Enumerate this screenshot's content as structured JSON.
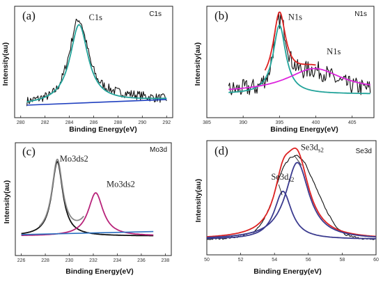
{
  "chart_data": [
    {
      "type": "line",
      "panel_label": "(a)",
      "tag": "C1s",
      "xlabel": "Binding Energy(eV)",
      "ylabel": "Intensity(au)",
      "xlim": [
        279.5,
        292.5
      ],
      "x_ticks": [
        280,
        282,
        284,
        286,
        288,
        290,
        292
      ],
      "annotations": [
        {
          "text": "C1s",
          "x": 285.6,
          "y": 0.97
        }
      ],
      "series": [
        {
          "role": "raw",
          "color": "#111111",
          "noise": 0.05,
          "x": [
            280.5,
            281.5,
            282.5,
            283.0,
            283.5,
            284.0,
            284.4,
            284.7,
            285.0,
            285.4,
            285.8,
            286.3,
            287.0,
            288.0,
            289.0,
            290.0,
            291.0,
            292.0
          ],
          "y": [
            0.1,
            0.13,
            0.17,
            0.24,
            0.38,
            0.62,
            0.88,
            0.99,
            0.94,
            0.72,
            0.5,
            0.34,
            0.25,
            0.2,
            0.18,
            0.16,
            0.14,
            0.13
          ]
        },
        {
          "role": "fit",
          "color": "#22a39a",
          "peaks": [
            {
              "center": 284.8,
              "width": 0.9,
              "height": 0.84
            }
          ],
          "baseline": [
            0.06,
            0.12
          ],
          "range": [
            280.5,
            292.0
          ]
        },
        {
          "role": "background",
          "color": "#1f3fbf",
          "x": [
            280.5,
            292.0
          ],
          "y": [
            0.06,
            0.12
          ]
        }
      ]
    },
    {
      "type": "line",
      "panel_label": "(b)",
      "tag": "N1s",
      "xlabel": "Binding Energy(eV)",
      "ylabel": "Intensity(au)",
      "xlim": [
        385,
        408
      ],
      "x_ticks": [
        385,
        390,
        395,
        400,
        405
      ],
      "annotations": [
        {
          "text": "N1s",
          "x": 396.2,
          "y": 0.97
        },
        {
          "text": "N1s",
          "x": 401.5,
          "y": 0.52
        }
      ],
      "series": [
        {
          "role": "raw",
          "color": "#111111",
          "noise": 0.12,
          "x": [
            388.0,
            390.0,
            392.0,
            393.5,
            394.2,
            394.8,
            395.2,
            395.8,
            396.5,
            397.5,
            398.5,
            399.5,
            400.5,
            401.5,
            402.5,
            403.5,
            404.5,
            405.5,
            406.5,
            407.5
          ],
          "y": [
            0.05,
            0.07,
            0.09,
            0.25,
            0.62,
            0.95,
            0.98,
            0.78,
            0.46,
            0.33,
            0.31,
            0.33,
            0.3,
            0.26,
            0.2,
            0.15,
            0.12,
            0.1,
            0.08,
            0.07
          ]
        },
        {
          "role": "fit",
          "color": "#22a39a",
          "peaks": [
            {
              "center": 395.0,
              "width": 1.05,
              "height": 0.9
            }
          ],
          "baseline": [
            0.0,
            0.0
          ],
          "range": [
            388.0,
            407.5
          ]
        },
        {
          "role": "fit",
          "color": "#dd22dd",
          "peaks": [
            {
              "center": 399.8,
              "width": 4.6,
              "height": 0.3
            }
          ],
          "baseline": [
            0.02,
            0.04
          ],
          "range": [
            388.0,
            407.5
          ]
        },
        {
          "role": "fit",
          "color": "#dd2222",
          "peaks": [
            {
              "center": 395.0,
              "width": 1.05,
              "height": 0.9
            },
            {
              "center": 399.8,
              "width": 4.6,
              "height": 0.3
            }
          ],
          "baseline": [
            0.02,
            0.04
          ],
          "range": [
            393.0,
            400.0
          ]
        }
      ]
    },
    {
      "type": "line",
      "panel_label": "(c)",
      "tag": "Mo3d",
      "xlabel": "Binding Energy(eV)",
      "ylabel": "Intensity(au)",
      "xlim": [
        225.5,
        238.5
      ],
      "x_ticks": [
        226,
        228,
        230,
        232,
        234,
        236,
        238
      ],
      "annotations": [
        {
          "text": "Mo3ds2",
          "x": 229.2,
          "y": 1.0
        },
        {
          "text": "Mo3ds2",
          "x": 233.1,
          "y": 0.66
        }
      ],
      "series": [
        {
          "role": "fit",
          "color": "#111111",
          "peaks": [
            {
              "center": 229.0,
              "width": 0.55,
              "height": 1.0
            }
          ],
          "baseline": [
            0.0,
            0.0
          ],
          "range": [
            226.0,
            237.0
          ]
        },
        {
          "role": "fit",
          "color": "#b8237a",
          "peaks": [
            {
              "center": 232.2,
              "width": 0.75,
              "height": 0.58
            }
          ],
          "baseline": [
            0.0,
            0.0
          ],
          "range": [
            226.0,
            237.0
          ]
        },
        {
          "role": "fit",
          "color": "#888888",
          "peaks": [
            {
              "center": 229.0,
              "width": 0.55,
              "height": 1.0
            },
            {
              "center": 232.2,
              "width": 0.75,
              "height": 0.58
            }
          ],
          "baseline": [
            0.0,
            0.0
          ],
          "range": [
            227.5,
            231.2
          ]
        },
        {
          "role": "background",
          "color": "#2a6fbf",
          "x": [
            226.0,
            237.0
          ],
          "y": [
            0.02,
            0.06
          ]
        }
      ]
    },
    {
      "type": "line",
      "panel_label": "(d)",
      "tag": "Se3d",
      "xlabel": "Binding Energy(eV)",
      "ylabel": "Intensity(au)",
      "xlim": [
        50,
        60
      ],
      "x_ticks": [
        50,
        52,
        54,
        56,
        58,
        60
      ],
      "annotations": [
        {
          "text": "Se3d",
          "sub": "s2",
          "x": 55.55,
          "y": 0.99
        },
        {
          "text": "Se3d",
          "sub": "s2",
          "x": 53.8,
          "y": 0.68
        }
      ],
      "series": [
        {
          "role": "raw",
          "color": "#111111",
          "noise": 0.008,
          "x": [
            50.0,
            51.0,
            52.0,
            52.8,
            53.3,
            53.8,
            54.2,
            54.6,
            55.0,
            55.4,
            55.8,
            56.3,
            57.0,
            57.6,
            58.2,
            59.0,
            60.0
          ],
          "y": [
            0.06,
            0.07,
            0.09,
            0.14,
            0.24,
            0.43,
            0.66,
            0.84,
            0.92,
            0.93,
            0.86,
            0.66,
            0.38,
            0.2,
            0.11,
            0.07,
            0.06
          ]
        },
        {
          "role": "fit",
          "color": "#dd2222",
          "peaks": [
            {
              "center": 54.5,
              "width": 0.62,
              "height": 0.44
            },
            {
              "center": 55.35,
              "width": 0.84,
              "height": 0.78
            }
          ],
          "baseline": [
            0.06,
            0.06
          ],
          "range": [
            50.0,
            60.0
          ]
        },
        {
          "role": "fit",
          "color": "#3b3b8f",
          "peaks": [
            {
              "center": 54.5,
              "width": 0.62,
              "height": 0.5
            }
          ],
          "baseline": [
            0.06,
            0.06
          ],
          "range": [
            50.0,
            60.0
          ]
        },
        {
          "role": "fit",
          "color": "#3b3b8f",
          "peaks": [
            {
              "center": 55.35,
              "width": 0.84,
              "height": 0.8
            }
          ],
          "baseline": [
            0.06,
            0.06
          ],
          "range": [
            50.0,
            60.0
          ]
        }
      ]
    }
  ]
}
